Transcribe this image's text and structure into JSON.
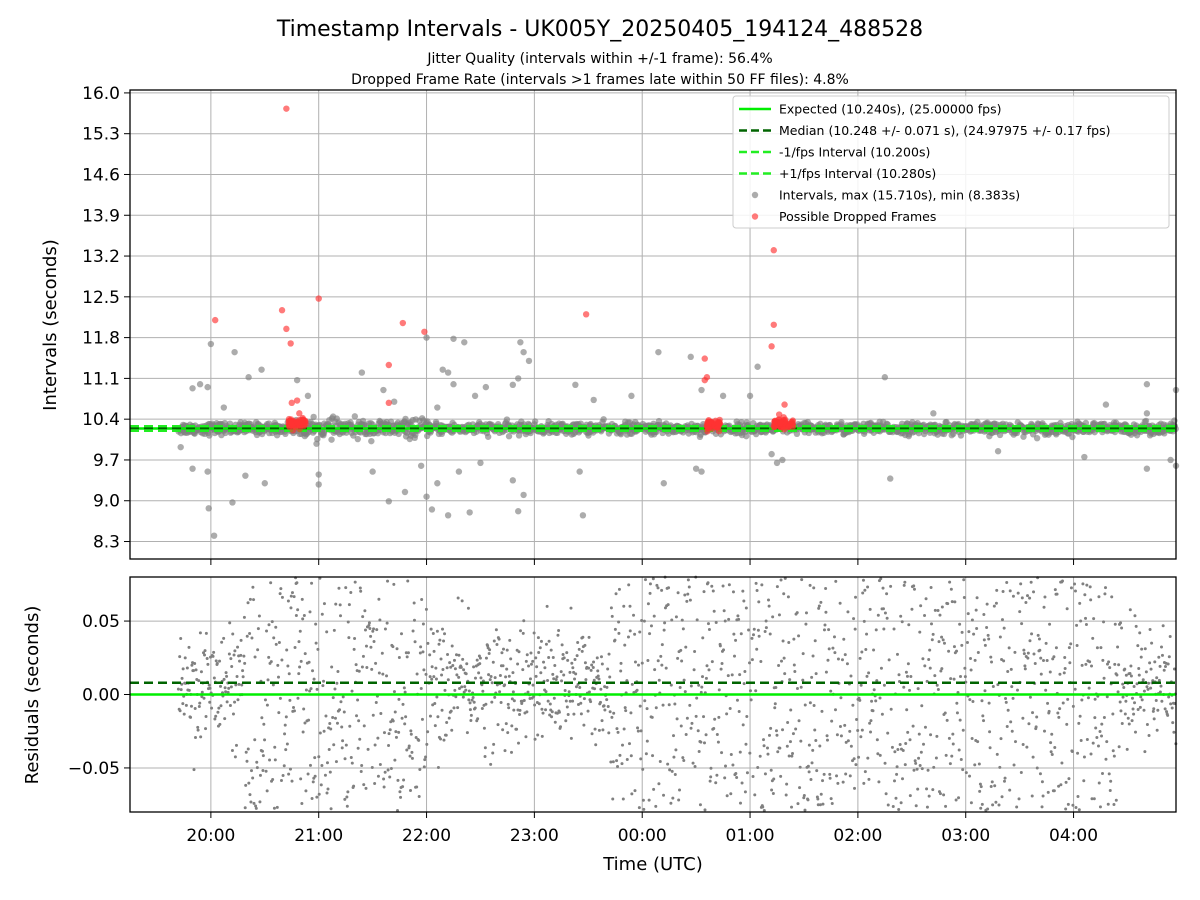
{
  "figure": {
    "title": "Timestamp Intervals - UK005Y_20250405_194124_488528",
    "subtitle_1": "Jitter Quality (intervals within +/-1 frame): 56.4%",
    "subtitle_2": "Dropped Frame Rate (intervals >1 frames late within 50 FF files): 4.8%"
  },
  "chart_data": [
    {
      "type": "scatter",
      "panel": "intervals",
      "ylabel": "Intervals (seconds)",
      "xlabel": "",
      "xlim_hours": [
        19.25,
        28.95
      ],
      "ylim": [
        8.0,
        16.05
      ],
      "ytick_labels": [
        "8.3",
        "9.0",
        "9.7",
        "10.4",
        "11.1",
        "11.8",
        "12.5",
        "13.2",
        "13.9",
        "14.6",
        "15.3",
        "16.0"
      ],
      "ytick_values": [
        8.3,
        9.0,
        9.7,
        10.4,
        11.1,
        11.8,
        12.5,
        13.2,
        13.9,
        14.6,
        15.3,
        16.0
      ],
      "xtick_labels": [
        "20:00",
        "21:00",
        "22:00",
        "23:00",
        "00:00",
        "01:00",
        "02:00",
        "03:00",
        "04:00"
      ],
      "xtick_values": [
        20,
        21,
        22,
        23,
        24,
        25,
        26,
        27,
        28
      ],
      "grid": true,
      "legend_position": "top-right",
      "lines": [
        {
          "name": "Expected (10.240s), (25.00000 fps)",
          "y": 10.24,
          "style": "solid",
          "color": "#00ee00"
        },
        {
          "name": "Median (10.248 +/- 0.071 s), (24.97975 +/- 0.17 fps)",
          "y": 10.248,
          "style": "dashed",
          "color": "#006400"
        },
        {
          "name": "-1/fps Interval (10.200s)",
          "y": 10.2,
          "style": "dashed",
          "color": "#22ee22"
        },
        {
          "name": "+1/fps Interval (10.280s)",
          "y": 10.28,
          "style": "dashed",
          "color": "#22ee22"
        }
      ],
      "series": [
        {
          "name": "Intervals, max (15.710s), min (8.383s)",
          "color": "#808080",
          "generated_band": {
            "x_start": 19.7,
            "x_end": 28.95,
            "center": 10.24
          },
          "points": [
            [
              19.83,
              10.93
            ],
            [
              19.9,
              11.0
            ],
            [
              19.97,
              10.95
            ],
            [
              19.98,
              8.87
            ],
            [
              20.03,
              8.4
            ],
            [
              20.0,
              11.69
            ],
            [
              20.22,
              11.55
            ],
            [
              20.35,
              11.12
            ],
            [
              20.47,
              11.25
            ],
            [
              20.12,
              10.6
            ],
            [
              19.72,
              9.92
            ],
            [
              19.83,
              9.55
            ],
            [
              19.97,
              9.5
            ],
            [
              20.32,
              9.43
            ],
            [
              20.5,
              9.3
            ],
            [
              20.2,
              8.97
            ],
            [
              20.8,
              11.07
            ],
            [
              20.9,
              10.8
            ],
            [
              21.4,
              11.2
            ],
            [
              21.6,
              10.9
            ],
            [
              21.7,
              10.7
            ],
            [
              22.0,
              11.8
            ],
            [
              22.25,
              11.78
            ],
            [
              22.35,
              11.72
            ],
            [
              22.15,
              11.25
            ],
            [
              22.2,
              11.2
            ],
            [
              22.25,
              11.0
            ],
            [
              22.55,
              10.95
            ],
            [
              22.8,
              10.99
            ],
            [
              22.85,
              11.1
            ],
            [
              22.87,
              11.72
            ],
            [
              22.9,
              11.55
            ],
            [
              22.95,
              11.4
            ],
            [
              22.1,
              10.6
            ],
            [
              22.45,
              10.8
            ],
            [
              21.0,
              9.45
            ],
            [
              21.0,
              9.28
            ],
            [
              21.5,
              9.5
            ],
            [
              21.65,
              8.99
            ],
            [
              21.8,
              9.15
            ],
            [
              21.95,
              9.6
            ],
            [
              22.0,
              9.07
            ],
            [
              22.05,
              8.85
            ],
            [
              22.1,
              9.3
            ],
            [
              22.2,
              8.75
            ],
            [
              22.3,
              9.5
            ],
            [
              22.4,
              8.8
            ],
            [
              22.8,
              9.35
            ],
            [
              22.85,
              8.82
            ],
            [
              22.9,
              9.1
            ],
            [
              22.5,
              9.65
            ],
            [
              23.38,
              10.99
            ],
            [
              23.55,
              10.73
            ],
            [
              23.42,
              9.5
            ],
            [
              23.45,
              8.75
            ],
            [
              23.9,
              10.8
            ],
            [
              24.15,
              11.55
            ],
            [
              24.45,
              11.47
            ],
            [
              24.55,
              10.9
            ],
            [
              24.75,
              10.8
            ],
            [
              24.2,
              9.3
            ],
            [
              24.5,
              9.55
            ],
            [
              24.55,
              9.5
            ],
            [
              25.07,
              11.3
            ],
            [
              25.0,
              10.8
            ],
            [
              25.2,
              9.8
            ],
            [
              25.25,
              9.65
            ],
            [
              25.3,
              9.7
            ],
            [
              26.25,
              11.12
            ],
            [
              26.3,
              9.38
            ],
            [
              28.3,
              10.65
            ],
            [
              28.68,
              11.0
            ],
            [
              28.68,
              10.5
            ],
            [
              28.68,
              9.55
            ],
            [
              28.95,
              10.9
            ],
            [
              28.9,
              9.7
            ],
            [
              28.95,
              9.6
            ],
            [
              28.1,
              9.75
            ],
            [
              27.3,
              9.85
            ],
            [
              26.7,
              10.5
            ]
          ]
        },
        {
          "name": "Possible Dropped Frames",
          "color": "#ff3333",
          "points": [
            [
              20.04,
              12.1
            ],
            [
              20.66,
              12.27
            ],
            [
              20.7,
              11.95
            ],
            [
              20.74,
              11.7
            ],
            [
              20.7,
              15.73
            ],
            [
              21.0,
              12.47
            ],
            [
              21.65,
              11.33
            ],
            [
              21.78,
              12.05
            ],
            [
              21.98,
              11.9
            ],
            [
              23.48,
              12.2
            ],
            [
              24.58,
              11.44
            ],
            [
              24.6,
              11.12
            ],
            [
              24.58,
              11.07
            ],
            [
              25.22,
              13.3
            ],
            [
              25.22,
              12.02
            ],
            [
              25.2,
              11.65
            ],
            [
              21.65,
              10.68
            ],
            [
              20.75,
              10.68
            ],
            [
              20.8,
              10.72
            ],
            [
              20.82,
              10.5
            ],
            [
              25.32,
              10.65
            ],
            [
              25.27,
              10.48
            ]
          ],
          "clusters": [
            {
              "x_start": 20.72,
              "x_end": 20.88,
              "y": 10.32
            },
            {
              "x_start": 24.6,
              "x_end": 24.72,
              "y": 10.3
            },
            {
              "x_start": 25.22,
              "x_end": 25.4,
              "y": 10.32
            }
          ]
        }
      ]
    },
    {
      "type": "scatter",
      "panel": "residuals",
      "ylabel": "Residuals (seconds)",
      "xlabel": "Time (UTC)",
      "xlim_hours": [
        19.25,
        28.95
      ],
      "ylim": [
        -0.08,
        0.08
      ],
      "ytick_labels": [
        "−0.05",
        "0.00",
        "0.05"
      ],
      "ytick_values": [
        -0.05,
        0.0,
        0.05
      ],
      "xtick_labels": [
        "20:00",
        "21:00",
        "22:00",
        "23:00",
        "00:00",
        "01:00",
        "02:00",
        "03:00",
        "04:00"
      ],
      "xtick_values": [
        20,
        21,
        22,
        23,
        24,
        25,
        26,
        27,
        28
      ],
      "grid": true,
      "lines": [
        {
          "y": 0.0,
          "style": "solid",
          "color": "#00ee00"
        },
        {
          "y": 0.008,
          "style": "dashed",
          "color": "#006400"
        }
      ],
      "series": [
        {
          "color": "#808080",
          "x_start": 19.7,
          "x_end": 28.95,
          "spread_narrow": 0.015,
          "spread_wide": 0.07
        }
      ]
    }
  ]
}
